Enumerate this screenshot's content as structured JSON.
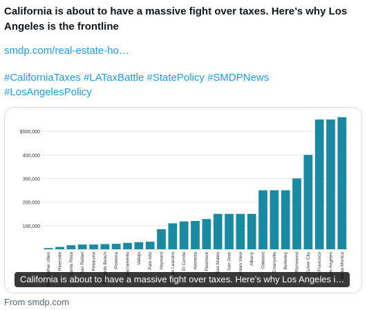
{
  "post": {
    "text": "California is about to have a massive fight over taxes. Here’s why Los Angeles is the frontline",
    "link": "smdp.com/real-estate-ho…",
    "hashtags": [
      "#CaliforniaTaxes",
      "#LATaxBattle",
      "#StatePolicy",
      "#SMDPNews",
      "#LosAngelesPolicy"
    ]
  },
  "card": {
    "caption": "California is about to have a massive fight over taxes. Here’s why Los Angeles i…",
    "source": "From smdp.com"
  },
  "chart_data": {
    "type": "bar",
    "title": "",
    "xlabel": "",
    "ylabel": "",
    "ylim": [
      0,
      600000
    ],
    "yticks": [
      "$500,000",
      "400,000",
      "300,000",
      "200,000",
      "100,000"
    ],
    "ytick_values": [
      500000,
      400000,
      300000,
      200000,
      100000
    ],
    "grid": true,
    "bar_color": "#1a8aa3",
    "categories": [
      "North other cities",
      "Riverside",
      "Santa Rosa",
      "San Rafael",
      "Petaluma",
      "Redondo Beach",
      "Pomona",
      "Sacramento",
      "Vallejo",
      "Palo Alto",
      "Hayward",
      "San Leandro",
      "El Cerrito",
      "Alameda",
      "Piedmont",
      "San Mateo",
      "San Jose",
      "Mountain View",
      "Albany",
      "Oakland",
      "Emeryville",
      "Berkeley",
      "Richmond",
      "Culver City",
      "San Francisco",
      "Los Angeles",
      "Santa Monica"
    ],
    "values": [
      5000,
      10000,
      17000,
      20000,
      20000,
      22000,
      23000,
      27000,
      30000,
      32000,
      85000,
      110000,
      118000,
      120000,
      128000,
      150000,
      150000,
      150000,
      150000,
      250000,
      250000,
      250000,
      300000,
      400000,
      550000,
      550000,
      560000
    ]
  }
}
